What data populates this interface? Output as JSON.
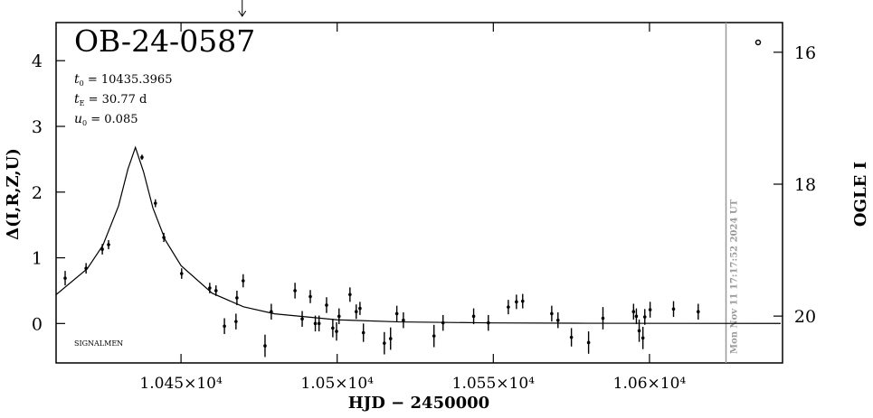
{
  "chart_data": {
    "type": "scatter",
    "title": "OB-24-0587",
    "params": [
      {
        "symbol": "t",
        "sub": "0",
        "text": " = 10435.3965"
      },
      {
        "symbol": "t",
        "sub": "E",
        "text": " = 30.77 d"
      },
      {
        "symbol": "u",
        "sub": "0",
        "text": " = 0.085"
      }
    ],
    "note": "SIGNALMEN",
    "x_label": "HJD − 2450000",
    "y_label": "Δ(I,R,Z,U)",
    "y2_label": "OGLE I",
    "xlim": [
      10410.0,
      10642.6
    ],
    "xticks": [
      {
        "value": 10450,
        "label": "1.045×10⁴"
      },
      {
        "value": 10500,
        "label": "1.05×10⁴"
      },
      {
        "value": 10550,
        "label": "1.055×10⁴"
      },
      {
        "value": 10600,
        "label": "1.06×10⁴"
      }
    ],
    "ylim": [
      -0.6,
      4.58
    ],
    "yticks": [
      0,
      1,
      2,
      3,
      4
    ],
    "y2lim": [
      20.71,
      15.55
    ],
    "y2ticks": [
      16,
      18,
      20
    ],
    "now_line": {
      "x": 10624.5,
      "label": "Mon Nov 11 17:17:52 2024 UT",
      "color": "#9a9a9a"
    },
    "arrow_x": 10469.6,
    "series": [
      {
        "color": "#000000",
        "x": [
          10412.9,
          10419.6,
          10424.8,
          10426.8,
          10437.5,
          10441.8,
          10444.5,
          10450.2,
          10459.2,
          10461.2,
          10463.9,
          10467.6,
          10467.9,
          10469.9,
          10476.9,
          10478.9,
          10486.5,
          10488.8,
          10491.4,
          10493.0,
          10494.2,
          10496.6,
          10498.6,
          10499.8,
          10500.6,
          10504.1,
          10506.1,
          10507.3,
          10508.4,
          10515.1,
          10517.1,
          10519.1,
          10521.2,
          10531.0,
          10533.9,
          10543.7,
          10548.4,
          10554.8,
          10557.4,
          10559.4,
          10568.7,
          10570.7,
          10575.0,
          10580.5,
          10585.1,
          10594.9,
          10595.8,
          10596.7,
          10597.9,
          10598.5,
          10600.2,
          10607.7,
          10615.6
        ],
        "values": [
          0.69,
          0.84,
          1.13,
          1.2,
          2.53,
          1.83,
          1.31,
          0.76,
          0.54,
          0.5,
          -0.04,
          0.03,
          0.39,
          0.65,
          -0.34,
          0.18,
          0.5,
          0.07,
          0.41,
          0.0,
          0.0,
          0.28,
          -0.07,
          -0.12,
          0.11,
          0.44,
          0.18,
          0.23,
          -0.14,
          -0.3,
          -0.23,
          0.15,
          0.05,
          -0.19,
          0.01,
          0.11,
          0.01,
          0.25,
          0.33,
          0.34,
          0.15,
          0.05,
          -0.21,
          -0.29,
          0.08,
          0.18,
          0.11,
          -0.11,
          -0.22,
          0.1,
          0.21,
          0.22,
          0.18
        ],
        "errors": [
          0.11,
          0.08,
          0.08,
          0.07,
          0.04,
          0.06,
          0.07,
          0.08,
          0.08,
          0.08,
          0.12,
          0.12,
          0.11,
          0.1,
          0.17,
          0.12,
          0.12,
          0.12,
          0.1,
          0.12,
          0.12,
          0.12,
          0.14,
          0.14,
          0.12,
          0.11,
          0.11,
          0.1,
          0.14,
          0.17,
          0.17,
          0.12,
          0.12,
          0.17,
          0.12,
          0.12,
          0.12,
          0.11,
          0.11,
          0.11,
          0.12,
          0.12,
          0.14,
          0.17,
          0.17,
          0.12,
          0.12,
          0.17,
          0.17,
          0.12,
          0.12,
          0.12,
          0.12
        ]
      }
    ],
    "model": {
      "type": "line",
      "color": "#000000",
      "x": [
        10410,
        10420,
        10425,
        10430,
        10433,
        10435.4,
        10438,
        10441,
        10445,
        10450,
        10460,
        10470,
        10480,
        10500,
        10520,
        10550,
        10580,
        10610,
        10642
      ],
      "values": [
        0.438,
        0.834,
        1.192,
        1.79,
        2.35,
        2.68,
        2.309,
        1.759,
        1.267,
        0.881,
        0.46,
        0.254,
        0.147,
        0.056,
        0.024,
        0.009,
        0.004,
        0.002,
        0.001
      ]
    }
  }
}
